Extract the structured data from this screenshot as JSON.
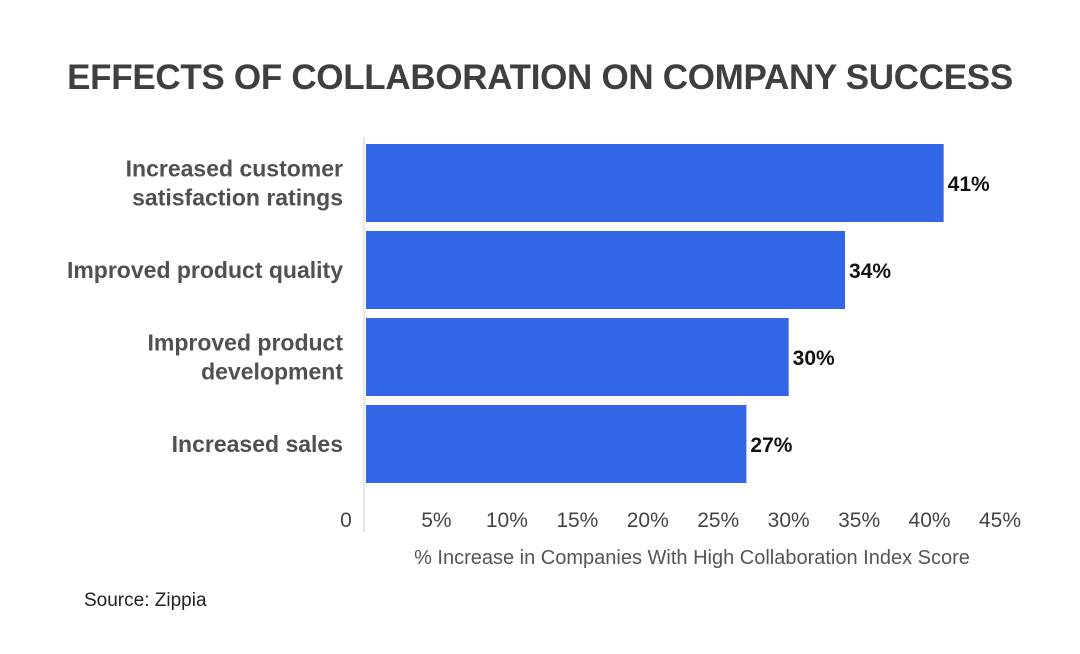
{
  "chart_data": {
    "type": "bar",
    "orientation": "horizontal",
    "title": "EFFECTS OF COLLABORATION ON COMPANY SUCCESS",
    "categories": [
      [
        "Increased customer",
        "satisfaction ratings"
      ],
      [
        "Improved product quality"
      ],
      [
        "Improved product",
        "development"
      ],
      [
        "Increased sales"
      ]
    ],
    "values": [
      41,
      34,
      30,
      27
    ],
    "value_labels": [
      "41%",
      "34%",
      "30%",
      "27%"
    ],
    "xlabel": "% Increase in Companies With High Collaboration Index Score",
    "xlim": [
      0,
      45
    ],
    "x_ticks": [
      0,
      5,
      10,
      15,
      20,
      25,
      30,
      35,
      40,
      45
    ],
    "x_tick_labels": [
      "0",
      "5%",
      "10%",
      "15%",
      "20%",
      "25%",
      "30%",
      "35%",
      "40%",
      "45%"
    ],
    "bar_color": "#3366e6",
    "grid": false
  },
  "source": "Source: Zippia"
}
